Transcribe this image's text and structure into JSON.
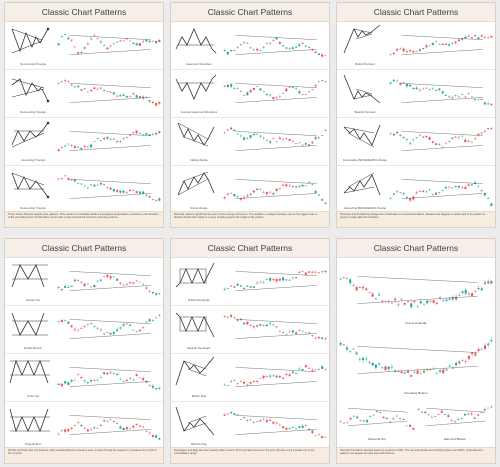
{
  "panels": [
    {
      "title": "Classic Chart Patterns",
      "rows": [
        {
          "label": "Symmetrical Triangle"
        },
        {
          "label": "Descending Triangle"
        },
        {
          "label": "Ascending Triangle"
        },
        {
          "label": "Descending Triangle"
        }
      ],
      "footer": "These charts illustrate classic price patterns. Price tends to consolidate inside a converging range before a breakout in the direction of the prevailing trend. Confirmation comes with a close beyond the trend line and rising volume."
    },
    {
      "title": "Classic Chart Patterns",
      "rows": [
        {
          "label": "Head and Shoulders"
        },
        {
          "label": "Inverted Head and Shoulders"
        },
        {
          "label": "Falling Wedge"
        },
        {
          "label": "Rising Wedge"
        }
      ],
      "footer": "Reversal patterns signal that the prior trend is losing momentum. The neckline or wedge boundary acts as the trigger level; a decisive break often leads to a move roughly equal to the height of the pattern."
    },
    {
      "title": "Classic Chart Patterns",
      "rows": [
        {
          "label": "Bullish Pennant"
        },
        {
          "label": "Bearish Pennant"
        },
        {
          "label": "Descending BROADENING Wedge"
        },
        {
          "label": "Ascending BROADENING Wedge"
        }
      ],
      "footer": "Pennants and broadening wedges are continuation or reversal formations. Measure the flagpole or widest part of the pattern to project a target after the breakout."
    },
    {
      "title": "Classic Chart Patterns",
      "rows": [
        {
          "label": "Double Top"
        },
        {
          "label": "Double Bottom"
        },
        {
          "label": "Triple Top"
        },
        {
          "label": "Triple Bottom"
        }
      ],
      "footer": "Double and triple tops and bottoms mark repeated failures to break a level. A close through the support or resistance line confirms the reversal."
    },
    {
      "title": "Classic Chart Patterns",
      "rows": [
        {
          "label": "Bullish Rectangle"
        },
        {
          "label": "Bearish Rectangle"
        },
        {
          "label": "Bullish Flag"
        },
        {
          "label": "Bearish Flag"
        }
      ],
      "footer": "Rectangles and flags are short pauses within a trend. Price typically resumes in the prior direction once it breaks out of the consolidation range."
    },
    {
      "title": "Classic Chart Patterns",
      "big": [
        {
          "label": "Cup and Handle"
        },
        {
          "label": "Rounding Bottom"
        }
      ],
      "small": [
        {
          "label": "Diamond Top"
        },
        {
          "label": "Diamond Bottom"
        }
      ],
      "footer": "Rounded formations develop slowly as sentiment shifts. The cup and handle and rounding bottom are bullish, while diamond patterns can appear at major tops and bottoms."
    }
  ]
}
